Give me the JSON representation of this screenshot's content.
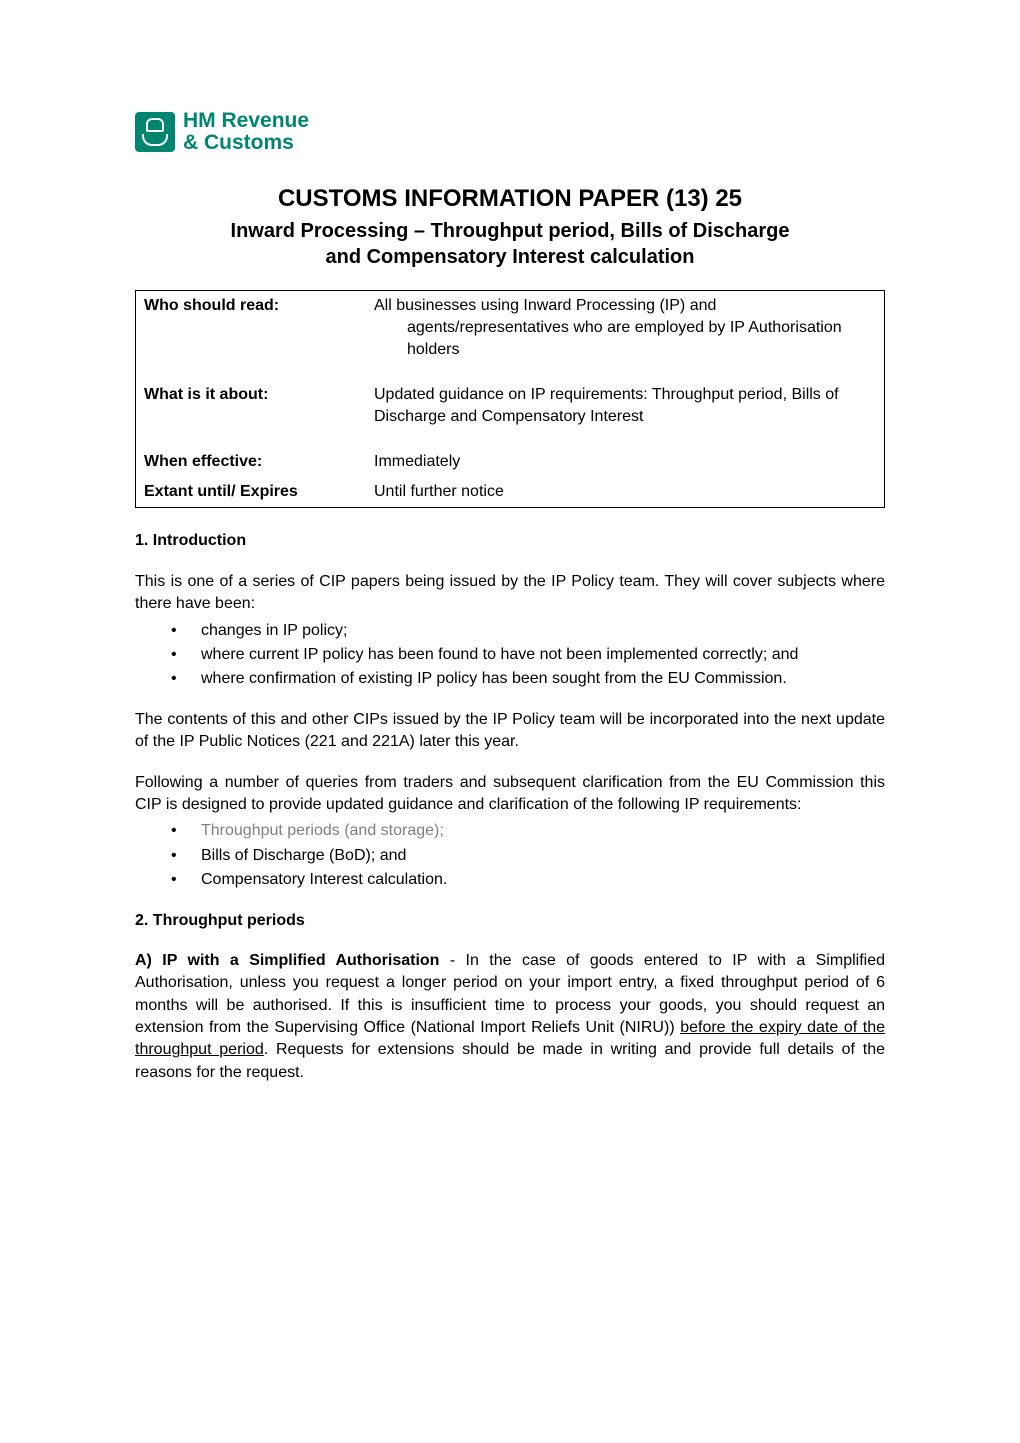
{
  "logo": {
    "line1": "HM Revenue",
    "line2": "& Customs",
    "text_color": "#008670",
    "crest_bg": "#008670"
  },
  "title": {
    "main": "CUSTOMS INFORMATION PAPER (13) 25",
    "sub_line1": "Inward Processing – Throughput period, Bills of Discharge",
    "sub_line2": "and Compensatory Interest calculation"
  },
  "info_table": {
    "rows": [
      {
        "label": "Who should read:",
        "value_line1": "All businesses using Inward Processing (IP) and",
        "value_line2": "agents/representatives who are employed by IP Authorisation holders"
      },
      {
        "label": "What is it about:",
        "value": "Updated guidance on IP requirements: Throughput period, Bills of Discharge and Compensatory Interest"
      },
      {
        "label": "When effective:",
        "value": "Immediately"
      },
      {
        "label": "Extant until/ Expires",
        "value": "Until further notice"
      }
    ]
  },
  "sections": {
    "s1_heading": "1. Introduction",
    "s1_p1": "This is one of a series of CIP papers being issued by the IP Policy team. They will cover subjects where there have been:",
    "s1_bullets_a": [
      "changes in IP policy;",
      "where current IP policy has been found to have not been implemented correctly; and",
      "where confirmation of existing IP policy has been sought from the EU Commission."
    ],
    "s1_p2": "The contents of this and other CIPs issued by the IP Policy team will be incorporated into the next update of the IP Public Notices (221 and 221A) later this year.",
    "s1_p3": "Following a number of queries from traders and subsequent clarification from the EU Commission this CIP is designed to provide updated guidance and clarification of the following IP requirements:",
    "s1_bullets_b": [
      {
        "text": "Throughput periods (and storage);",
        "grey": true
      },
      {
        "text": "Bills of Discharge (BoD); and",
        "grey": false
      },
      {
        "text": "Compensatory Interest calculation.",
        "grey": false
      }
    ],
    "s2_heading": "2. Throughput periods",
    "s2_a_label": "A) IP with a Simplified Authorisation",
    "s2_a_body_pre": " - In the case of goods entered to IP with a Simplified Authorisation, unless you request a longer period on your import entry, a fixed throughput period of 6 months will be authorised. If this is insufficient time to process your goods, you should request an extension from the Supervising Office (National Import Reliefs Unit (NIRU)) ",
    "s2_a_underline": "before the expiry date of the throughput period",
    "s2_a_body_post": ". Requests for extensions should be made in writing and provide full details of the reasons for the request."
  },
  "colors": {
    "text": "#000000",
    "grey_text": "#808080",
    "background": "#ffffff"
  },
  "typography": {
    "body_fontsize": 16,
    "title_main_fontsize": 24,
    "title_sub_fontsize": 20,
    "logo_fontsize": 21
  }
}
